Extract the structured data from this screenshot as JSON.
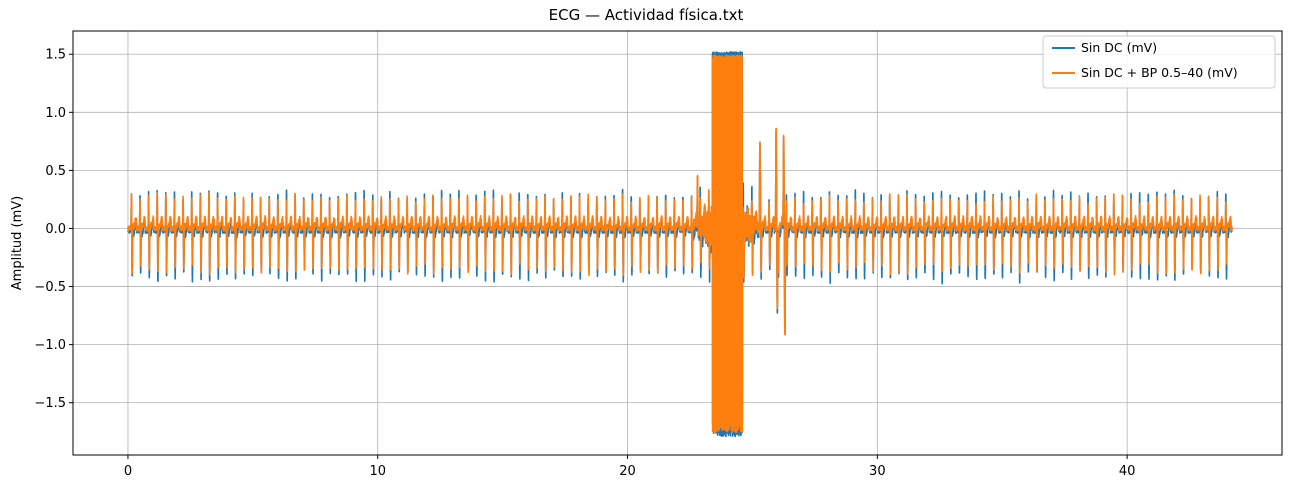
{
  "chart_data": {
    "type": "line",
    "title": "ECG — Actividad física.txt",
    "xlabel": "",
    "ylabel": "Amplitud (mV)",
    "xlim": [
      -2.2,
      46.2
    ],
    "ylim": [
      -1.95,
      1.7
    ],
    "x_ticks": [
      0,
      10,
      20,
      30,
      40
    ],
    "y_ticks": [
      -1.5,
      -1.0,
      -0.5,
      0.0,
      0.5,
      1.0,
      1.5
    ],
    "x_tick_labels": [
      "0",
      "10",
      "20",
      "30",
      "40"
    ],
    "y_tick_labels": [
      "−1.5",
      "−1.0",
      "−0.5",
      "0.0",
      "0.5",
      "1.0",
      "1.5"
    ],
    "grid": true,
    "legend_position": "top-right",
    "x_range": [
      0,
      44.2
    ],
    "beat_interval_s": 0.345,
    "artifact": {
      "saturated_start_s": 23.4,
      "saturated_end_s": 24.6,
      "max_mv": 1.52,
      "min_mv": -1.79,
      "spikes": [
        {
          "x": 22.8,
          "y": 0.45
        },
        {
          "x": 25.3,
          "y": 0.71
        },
        {
          "x": 25.95,
          "y": 0.87
        },
        {
          "x": 26.0,
          "y": -0.78
        },
        {
          "x": 26.25,
          "y": 0.81
        },
        {
          "x": 26.3,
          "y": -0.9
        }
      ]
    },
    "series": [
      {
        "name": "Sin DC (mV)",
        "color": "#1f77b4",
        "r_peak_mv": 0.32,
        "s_trough_mv": -0.4,
        "baseline_mv": -0.02
      },
      {
        "name": "Sin DC + BP 0.5–40 (mV)",
        "color": "#ff7f0e",
        "r_peak_mv": 0.27,
        "s_trough_mv": -0.36,
        "baseline_mv": 0.0
      }
    ]
  }
}
